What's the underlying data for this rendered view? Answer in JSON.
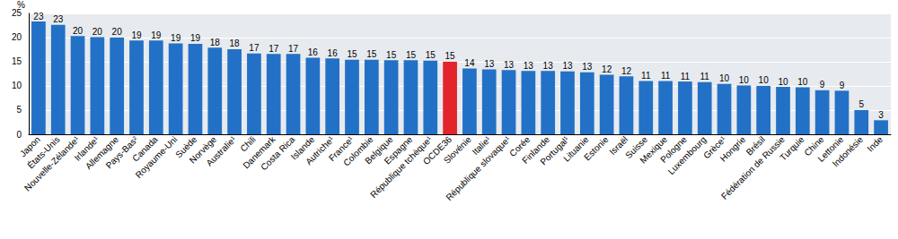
{
  "chart_data": {
    "type": "bar",
    "y_label": "%",
    "categories": [
      "Japon",
      "États-Unis",
      "Nouvelle-Zélande¹",
      "Irlande¹",
      "Allemagne",
      "Pays-Bas²",
      "Canada",
      "Royaume-Uni",
      "Suède",
      "Norvège",
      "Australie¹",
      "Chili",
      "Danemark",
      "Costa Rica",
      "Islande",
      "Autriche¹",
      "France¹",
      "Colombie",
      "Belgique",
      "Espagne",
      "République tchèque¹",
      "OCDE36",
      "Slovénie",
      "Italie¹",
      "République slovaque¹",
      "Corée",
      "Finlande",
      "Portugal¹",
      "Lituanie",
      "Estonie",
      "Israël",
      "Suisse",
      "Mexique",
      "Pologne",
      "Luxembourg",
      "Grèce¹",
      "Hongrie",
      "Brésil",
      "Fédération de Russie",
      "Turquie",
      "Chine",
      "Lettonie",
      "Indonésie",
      "Inde"
    ],
    "values": [
      23.3,
      22.6,
      20.3,
      20.1,
      20.0,
      19.4,
      19.4,
      18.8,
      18.7,
      17.9,
      17.6,
      16.7,
      16.6,
      16.6,
      15.8,
      15.7,
      15.4,
      15.4,
      15.3,
      15.3,
      15.2,
      15.0,
      13.6,
      13.4,
      13.3,
      13.1,
      13.1,
      13.0,
      12.8,
      12.3,
      12.0,
      11.0,
      11.0,
      10.9,
      10.8,
      10.4,
      10.1,
      10.0,
      9.8,
      9.7,
      9.1,
      9.0,
      5.0,
      2.9
    ],
    "value_labels": [
      "23",
      "23",
      "20",
      "20",
      "20",
      "19",
      "19",
      "19",
      "19",
      "18",
      "18",
      "17",
      "17",
      "17",
      "16",
      "16",
      "15",
      "15",
      "15",
      "15",
      "15",
      "15",
      "14",
      "13",
      "13",
      "13",
      "13",
      "13",
      "13",
      "12",
      "12",
      "11",
      "11",
      "11",
      "11",
      "10",
      "10",
      "10",
      "10",
      "10",
      "9",
      "9",
      "5",
      "3"
    ],
    "colors": [
      "#2271c6",
      "#2271c6",
      "#2271c6",
      "#2271c6",
      "#2271c6",
      "#2271c6",
      "#2271c6",
      "#2271c6",
      "#2271c6",
      "#2271c6",
      "#2271c6",
      "#2271c6",
      "#2271c6",
      "#2271c6",
      "#2271c6",
      "#2271c6",
      "#2271c6",
      "#2271c6",
      "#2271c6",
      "#2271c6",
      "#2271c6",
      "#e3242b",
      "#2271c6",
      "#2271c6",
      "#2271c6",
      "#2271c6",
      "#2271c6",
      "#2271c6",
      "#2271c6",
      "#2271c6",
      "#2271c6",
      "#2271c6",
      "#2271c6",
      "#2271c6",
      "#2271c6",
      "#2271c6",
      "#2271c6",
      "#2271c6",
      "#2271c6",
      "#2271c6",
      "#2271c6",
      "#2271c6",
      "#2271c6",
      "#2271c6"
    ],
    "ylim": [
      0,
      25
    ],
    "yticks": [
      0,
      5,
      10,
      15,
      20,
      25
    ],
    "grid": true,
    "data_labels": true
  }
}
